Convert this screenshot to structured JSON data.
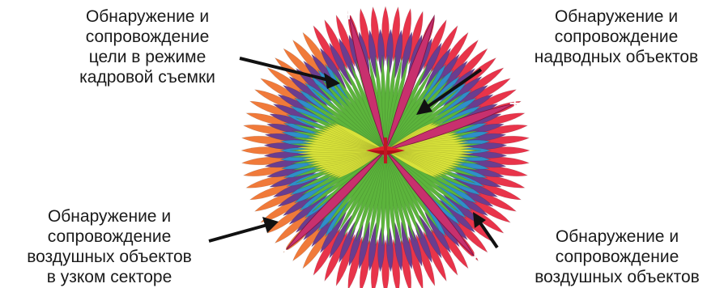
{
  "labels": {
    "top_left": [
      "Обнаружение и",
      "сопровождение",
      "цели в режиме",
      "кадровой съемки"
    ],
    "top_right": [
      "Обнаружение и",
      "сопровождение",
      "надводных объектов"
    ],
    "bottom_left": [
      "Обнаружение и",
      "сопровождение",
      "воздушных объектов",
      "в узком секторе"
    ],
    "bottom_right": [
      "Обнаружение и",
      "сопровождение",
      "воздушных объектов"
    ]
  },
  "colors": {
    "outer_ring": "#e8344a",
    "outer_ring_orange": "#f07a3a",
    "purple_ring": "#6a3d8f",
    "blue_ring": "#2e8fc8",
    "green_core": "#5cb43c",
    "yellow_lobes": "#d8e23a",
    "beam": "#c8306e",
    "arrow": "#111111"
  }
}
